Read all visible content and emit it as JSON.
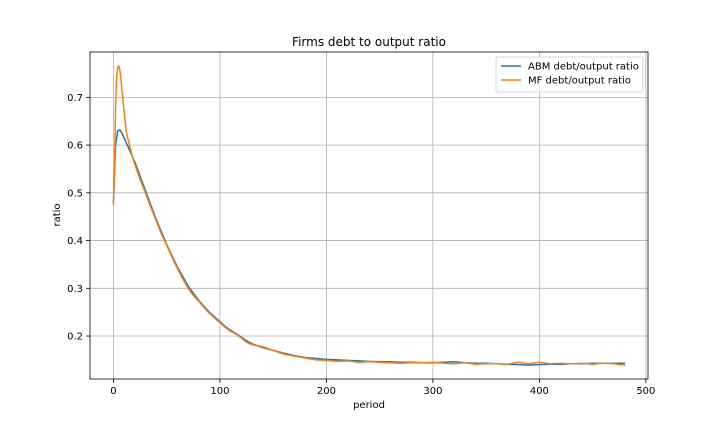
{
  "chart_data": {
    "type": "line",
    "title": "Firms debt to output ratio",
    "xlabel": "period",
    "ylabel": "ratio",
    "xlim": [
      -22,
      502
    ],
    "ylim": [
      0.11,
      0.795
    ],
    "xticks": [
      0,
      100,
      200,
      300,
      400,
      500
    ],
    "yticks": [
      0.2,
      0.3,
      0.4,
      0.5,
      0.6,
      0.7
    ],
    "grid": true,
    "legend_position": "top-right",
    "series": [
      {
        "name": "ABM debt/output ratio",
        "color": "#1f77b4",
        "points": [
          [
            0,
            0.48
          ],
          [
            2,
            0.6
          ],
          [
            4,
            0.63
          ],
          [
            6,
            0.632
          ],
          [
            8,
            0.625
          ],
          [
            10,
            0.615
          ],
          [
            12,
            0.605
          ],
          [
            15,
            0.59
          ],
          [
            20,
            0.565
          ],
          [
            25,
            0.535
          ],
          [
            30,
            0.505
          ],
          [
            35,
            0.475
          ],
          [
            40,
            0.445
          ],
          [
            45,
            0.418
          ],
          [
            50,
            0.392
          ],
          [
            55,
            0.368
          ],
          [
            60,
            0.345
          ],
          [
            65,
            0.325
          ],
          [
            70,
            0.305
          ],
          [
            75,
            0.29
          ],
          [
            80,
            0.275
          ],
          [
            85,
            0.262
          ],
          [
            90,
            0.25
          ],
          [
            95,
            0.24
          ],
          [
            100,
            0.23
          ],
          [
            105,
            0.22
          ],
          [
            110,
            0.212
          ],
          [
            115,
            0.205
          ],
          [
            120,
            0.198
          ],
          [
            125,
            0.19
          ],
          [
            130,
            0.184
          ],
          [
            140,
            0.176
          ],
          [
            150,
            0.17
          ],
          [
            160,
            0.164
          ],
          [
            170,
            0.159
          ],
          [
            180,
            0.155
          ],
          [
            190,
            0.153
          ],
          [
            200,
            0.151
          ],
          [
            210,
            0.15
          ],
          [
            220,
            0.149
          ],
          [
            230,
            0.148
          ],
          [
            240,
            0.147
          ],
          [
            250,
            0.146
          ],
          [
            260,
            0.146
          ],
          [
            270,
            0.145
          ],
          [
            280,
            0.145
          ],
          [
            290,
            0.144
          ],
          [
            300,
            0.144
          ],
          [
            310,
            0.145
          ],
          [
            320,
            0.146
          ],
          [
            330,
            0.144
          ],
          [
            340,
            0.143
          ],
          [
            350,
            0.143
          ],
          [
            360,
            0.142
          ],
          [
            370,
            0.141
          ],
          [
            380,
            0.14
          ],
          [
            390,
            0.139
          ],
          [
            400,
            0.14
          ],
          [
            410,
            0.141
          ],
          [
            420,
            0.141
          ],
          [
            430,
            0.142
          ],
          [
            440,
            0.142
          ],
          [
            450,
            0.143
          ],
          [
            460,
            0.143
          ],
          [
            470,
            0.143
          ],
          [
            480,
            0.143
          ]
        ]
      },
      {
        "name": "MF debt/output ratio",
        "color": "#ff7f0e",
        "points": [
          [
            0,
            0.475
          ],
          [
            1,
            0.55
          ],
          [
            2,
            0.68
          ],
          [
            3,
            0.745
          ],
          [
            4,
            0.762
          ],
          [
            5,
            0.766
          ],
          [
            6,
            0.758
          ],
          [
            7,
            0.74
          ],
          [
            8,
            0.715
          ],
          [
            10,
            0.67
          ],
          [
            12,
            0.628
          ],
          [
            15,
            0.6
          ],
          [
            18,
            0.575
          ],
          [
            20,
            0.56
          ],
          [
            25,
            0.528
          ],
          [
            30,
            0.5
          ],
          [
            35,
            0.47
          ],
          [
            40,
            0.442
          ],
          [
            45,
            0.414
          ],
          [
            50,
            0.39
          ],
          [
            55,
            0.365
          ],
          [
            60,
            0.342
          ],
          [
            65,
            0.32
          ],
          [
            70,
            0.3
          ],
          [
            75,
            0.285
          ],
          [
            80,
            0.273
          ],
          [
            85,
            0.26
          ],
          [
            90,
            0.248
          ],
          [
            95,
            0.238
          ],
          [
            100,
            0.228
          ],
          [
            105,
            0.218
          ],
          [
            110,
            0.21
          ],
          [
            115,
            0.204
          ],
          [
            120,
            0.196
          ],
          [
            125,
            0.187
          ],
          [
            130,
            0.182
          ],
          [
            140,
            0.178
          ],
          [
            150,
            0.17
          ],
          [
            160,
            0.162
          ],
          [
            170,
            0.158
          ],
          [
            180,
            0.154
          ],
          [
            190,
            0.15
          ],
          [
            200,
            0.149
          ],
          [
            210,
            0.147
          ],
          [
            220,
            0.148
          ],
          [
            230,
            0.145
          ],
          [
            240,
            0.146
          ],
          [
            250,
            0.145
          ],
          [
            260,
            0.144
          ],
          [
            270,
            0.143
          ],
          [
            280,
            0.144
          ],
          [
            290,
            0.144
          ],
          [
            300,
            0.145
          ],
          [
            310,
            0.143
          ],
          [
            320,
            0.142
          ],
          [
            330,
            0.144
          ],
          [
            340,
            0.141
          ],
          [
            350,
            0.142
          ],
          [
            360,
            0.142
          ],
          [
            370,
            0.141
          ],
          [
            380,
            0.145
          ],
          [
            390,
            0.142
          ],
          [
            400,
            0.145
          ],
          [
            410,
            0.142
          ],
          [
            420,
            0.143
          ],
          [
            430,
            0.142
          ],
          [
            440,
            0.143
          ],
          [
            450,
            0.141
          ],
          [
            460,
            0.143
          ],
          [
            470,
            0.142
          ],
          [
            480,
            0.139
          ]
        ]
      }
    ]
  }
}
